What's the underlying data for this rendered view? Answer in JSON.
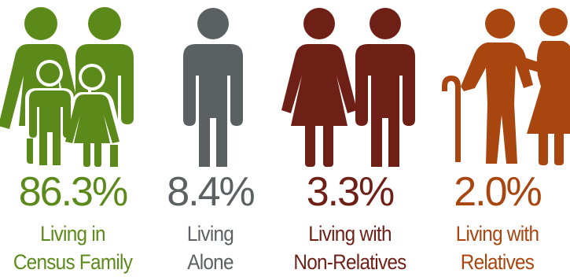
{
  "groups": [
    {
      "percent": "86.3%",
      "label_line1": "Living in",
      "label_line2": "Census Family",
      "color": "#5b8a1a",
      "icon": "family-icon"
    },
    {
      "percent": "8.4%",
      "label_line1": "Living",
      "label_line2": "Alone",
      "color": "#5b6162",
      "icon": "person-icon"
    },
    {
      "percent": "3.3%",
      "label_line1": "Living with",
      "label_line2": "Non-Relatives",
      "color": "#6e1f16",
      "icon": "couple-icon"
    },
    {
      "percent": "2.0%",
      "label_line1": "Living with",
      "label_line2": "Relatives",
      "color": "#a9450f",
      "icon": "elderly-couple-icon"
    }
  ]
}
